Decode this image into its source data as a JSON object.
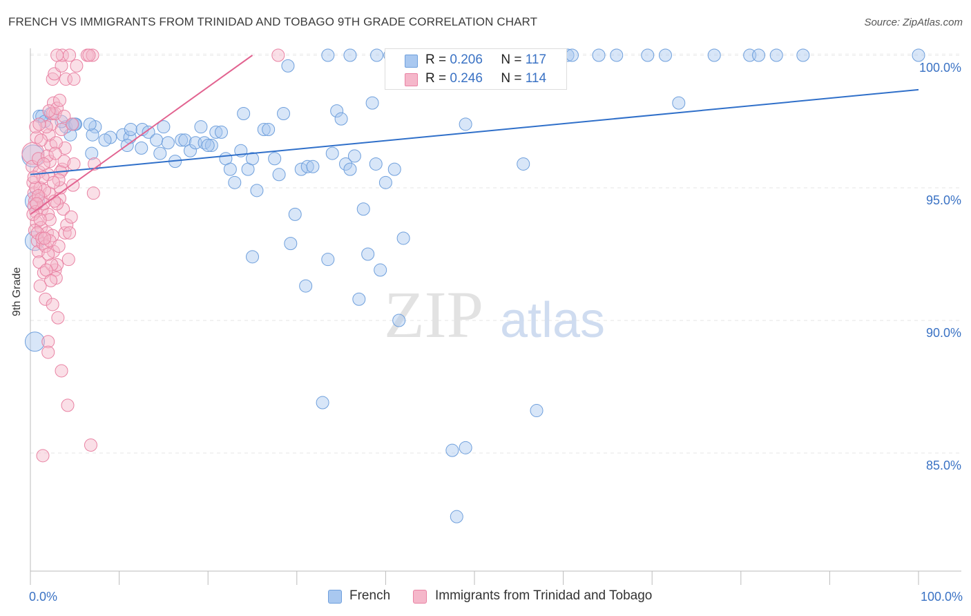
{
  "title": "FRENCH VS IMMIGRANTS FROM TRINIDAD AND TOBAGO 9TH GRADE CORRELATION CHART",
  "source": "Source: ZipAtlas.com",
  "watermark": {
    "zip": "ZIP",
    "atlas": "atlas"
  },
  "legend_stats": {
    "blue": {
      "r_label": "R =",
      "r_value": "0.206",
      "n_label": "N =",
      "n_value": "117"
    },
    "pink": {
      "r_label": "R =",
      "r_value": "0.246",
      "n_label": "N =",
      "n_value": "114"
    }
  },
  "bottom_legend": {
    "blue": "French",
    "pink": "Immigrants from Trinidad and Tobago"
  },
  "colors": {
    "blue_fill": "#a9c8f0",
    "blue_stroke": "#6e9fdc",
    "blue_line": "#2f6fc9",
    "pink_fill": "#f5b7ca",
    "pink_stroke": "#e982a3",
    "pink_line": "#e26390",
    "tick_label": "#3a72c4"
  },
  "chart_data": {
    "type": "scatter",
    "title": "FRENCH VS IMMIGRANTS FROM TRINIDAD AND TOBAGO 9TH GRADE CORRELATION CHART",
    "xlabel": "",
    "ylabel": "9th Grade",
    "xlim": [
      0,
      100
    ],
    "ylim": [
      80.5,
      100.8
    ],
    "x_tick_labels": [
      "0.0%",
      "100.0%"
    ],
    "y_ticks": [
      85,
      90,
      95,
      100
    ],
    "y_tick_labels": [
      "85.0%",
      "90.0%",
      "95.0%",
      "100.0%"
    ],
    "grid": true,
    "legend_position": "bottom",
    "series": [
      {
        "name": "French",
        "trend": {
          "x": [
            0,
            100
          ],
          "y": [
            95.5,
            98.7
          ]
        },
        "points": [
          {
            "x": 0.3,
            "y": 96.2,
            "s": 16
          },
          {
            "x": 0.5,
            "y": 89.2,
            "s": 14
          },
          {
            "x": 0.5,
            "y": 94.5,
            "s": 14
          },
          {
            "x": 0.5,
            "y": 93.0,
            "s": 14
          },
          {
            "x": 1.0,
            "y": 97.7
          },
          {
            "x": 1.3,
            "y": 97.7
          },
          {
            "x": 1.6,
            "y": 97.5
          },
          {
            "x": 2.3,
            "y": 97.8
          },
          {
            "x": 4.8,
            "y": 97.4
          },
          {
            "x": 4.5,
            "y": 97.0
          },
          {
            "x": 4.0,
            "y": 97.3
          },
          {
            "x": 7.3,
            "y": 97.3
          },
          {
            "x": 7.0,
            "y": 97.0
          },
          {
            "x": 5.1,
            "y": 97.4
          },
          {
            "x": 6.7,
            "y": 97.4
          },
          {
            "x": 9.0,
            "y": 96.9
          },
          {
            "x": 8.4,
            "y": 96.8
          },
          {
            "x": 6.9,
            "y": 96.3
          },
          {
            "x": 10.4,
            "y": 97.0
          },
          {
            "x": 11.2,
            "y": 96.9
          },
          {
            "x": 10.9,
            "y": 96.6
          },
          {
            "x": 11.3,
            "y": 97.2
          },
          {
            "x": 12.6,
            "y": 97.2
          },
          {
            "x": 13.3,
            "y": 97.1
          },
          {
            "x": 14.2,
            "y": 96.8
          },
          {
            "x": 12.5,
            "y": 96.5
          },
          {
            "x": 14.6,
            "y": 96.3
          },
          {
            "x": 15.0,
            "y": 97.3
          },
          {
            "x": 15.5,
            "y": 96.7
          },
          {
            "x": 16.3,
            "y": 96.0
          },
          {
            "x": 17.0,
            "y": 96.8
          },
          {
            "x": 17.4,
            "y": 96.8
          },
          {
            "x": 18.0,
            "y": 96.4
          },
          {
            "x": 18.6,
            "y": 96.7
          },
          {
            "x": 19.2,
            "y": 97.3
          },
          {
            "x": 19.6,
            "y": 96.7
          },
          {
            "x": 20.4,
            "y": 96.6
          },
          {
            "x": 20.0,
            "y": 96.6
          },
          {
            "x": 20.9,
            "y": 97.1
          },
          {
            "x": 21.5,
            "y": 97.1
          },
          {
            "x": 22.0,
            "y": 96.1
          },
          {
            "x": 22.5,
            "y": 95.7
          },
          {
            "x": 23.0,
            "y": 95.2
          },
          {
            "x": 23.7,
            "y": 96.4
          },
          {
            "x": 24.0,
            "y": 97.8
          },
          {
            "x": 24.5,
            "y": 95.7
          },
          {
            "x": 25.0,
            "y": 96.1
          },
          {
            "x": 25.5,
            "y": 94.9
          },
          {
            "x": 26.3,
            "y": 97.2
          },
          {
            "x": 26.8,
            "y": 97.2
          },
          {
            "x": 27.5,
            "y": 96.1
          },
          {
            "x": 28.0,
            "y": 95.5
          },
          {
            "x": 28.5,
            "y": 97.8
          },
          {
            "x": 29.3,
            "y": 92.9
          },
          {
            "x": 29.8,
            "y": 94.0
          },
          {
            "x": 30.5,
            "y": 95.7
          },
          {
            "x": 31.0,
            "y": 91.3
          },
          {
            "x": 31.2,
            "y": 95.8
          },
          {
            "x": 31.8,
            "y": 95.8
          },
          {
            "x": 32.9,
            "y": 86.9
          },
          {
            "x": 33.5,
            "y": 92.3
          },
          {
            "x": 34.0,
            "y": 96.3
          },
          {
            "x": 34.5,
            "y": 97.9
          },
          {
            "x": 35.0,
            "y": 97.6
          },
          {
            "x": 35.5,
            "y": 95.9
          },
          {
            "x": 36.0,
            "y": 95.7
          },
          {
            "x": 36.5,
            "y": 96.2
          },
          {
            "x": 37.0,
            "y": 90.8
          },
          {
            "x": 37.5,
            "y": 94.2
          },
          {
            "x": 38.0,
            "y": 92.5
          },
          {
            "x": 38.5,
            "y": 98.2
          },
          {
            "x": 38.9,
            "y": 95.9
          },
          {
            "x": 39.0,
            "y": 100
          },
          {
            "x": 39.4,
            "y": 91.9
          },
          {
            "x": 40.0,
            "y": 95.2
          },
          {
            "x": 41.0,
            "y": 95.7
          },
          {
            "x": 41.5,
            "y": 90.0
          },
          {
            "x": 42.0,
            "y": 93.1
          },
          {
            "x": 44.0,
            "y": 100
          },
          {
            "x": 44.5,
            "y": 100
          },
          {
            "x": 45.0,
            "y": 100
          },
          {
            "x": 46.5,
            "y": 100
          },
          {
            "x": 47.5,
            "y": 85.1
          },
          {
            "x": 48.0,
            "y": 82.6
          },
          {
            "x": 49.0,
            "y": 85.2
          },
          {
            "x": 50.0,
            "y": 100
          },
          {
            "x": 51.0,
            "y": 100
          },
          {
            "x": 55.5,
            "y": 95.9
          },
          {
            "x": 55.0,
            "y": 100
          },
          {
            "x": 57.5,
            "y": 100
          },
          {
            "x": 60.5,
            "y": 100
          },
          {
            "x": 61.0,
            "y": 100
          },
          {
            "x": 55.0,
            "y": 100
          },
          {
            "x": 57.0,
            "y": 86.6
          },
          {
            "x": 49.0,
            "y": 97.4
          },
          {
            "x": 64.0,
            "y": 100
          },
          {
            "x": 66.0,
            "y": 100
          },
          {
            "x": 69.5,
            "y": 100
          },
          {
            "x": 71.5,
            "y": 100
          },
          {
            "x": 73.0,
            "y": 98.2
          },
          {
            "x": 77.0,
            "y": 100
          },
          {
            "x": 81.0,
            "y": 100
          },
          {
            "x": 82.0,
            "y": 100
          },
          {
            "x": 84.0,
            "y": 100
          },
          {
            "x": 87.0,
            "y": 100
          },
          {
            "x": 100.0,
            "y": 100
          },
          {
            "x": 25.0,
            "y": 92.4
          },
          {
            "x": 36.0,
            "y": 100
          },
          {
            "x": 40.5,
            "y": 100
          },
          {
            "x": 42.0,
            "y": 99.6
          },
          {
            "x": 46.0,
            "y": 100
          },
          {
            "x": 29.0,
            "y": 99.6
          },
          {
            "x": 33.5,
            "y": 100
          },
          {
            "x": 5.0,
            "y": 97.4
          },
          {
            "x": 3.5,
            "y": 97.5
          }
        ]
      },
      {
        "name": "Immigrants from Trinidad and Tobago",
        "trend": {
          "x": [
            0,
            25
          ],
          "y": [
            94.0,
            100
          ]
        },
        "points": [
          {
            "x": 0.3,
            "y": 96.3,
            "s": 16
          },
          {
            "x": 0.2,
            "y": 95.8
          },
          {
            "x": 0.3,
            "y": 95.2
          },
          {
            "x": 0.4,
            "y": 94.8
          },
          {
            "x": 0.5,
            "y": 94.5
          },
          {
            "x": 0.4,
            "y": 94.3
          },
          {
            "x": 0.6,
            "y": 94.1
          },
          {
            "x": 0.7,
            "y": 93.7
          },
          {
            "x": 0.5,
            "y": 93.4
          },
          {
            "x": 0.8,
            "y": 93.0
          },
          {
            "x": 0.9,
            "y": 92.6
          },
          {
            "x": 1.0,
            "y": 92.2
          },
          {
            "x": 1.0,
            "y": 95.6
          },
          {
            "x": 1.1,
            "y": 95.0
          },
          {
            "x": 1.2,
            "y": 94.6
          },
          {
            "x": 1.3,
            "y": 94.2
          },
          {
            "x": 1.2,
            "y": 93.5
          },
          {
            "x": 1.4,
            "y": 92.9
          },
          {
            "x": 1.5,
            "y": 91.8
          },
          {
            "x": 1.1,
            "y": 91.3
          },
          {
            "x": 1.7,
            "y": 90.8
          },
          {
            "x": 1.9,
            "y": 93.3
          },
          {
            "x": 2.0,
            "y": 94.0
          },
          {
            "x": 2.1,
            "y": 94.8
          },
          {
            "x": 2.0,
            "y": 95.5
          },
          {
            "x": 2.2,
            "y": 96.0
          },
          {
            "x": 2.3,
            "y": 96.6
          },
          {
            "x": 2.1,
            "y": 97.0
          },
          {
            "x": 2.4,
            "y": 97.4
          },
          {
            "x": 1.8,
            "y": 97.3
          },
          {
            "x": 2.5,
            "y": 97.8
          },
          {
            "x": 2.6,
            "y": 98.2
          },
          {
            "x": 2.8,
            "y": 97.8
          },
          {
            "x": 3.0,
            "y": 98.0
          },
          {
            "x": 2.5,
            "y": 99.1
          },
          {
            "x": 2.7,
            "y": 99.3
          },
          {
            "x": 2.5,
            "y": 93.2
          },
          {
            "x": 2.6,
            "y": 92.6
          },
          {
            "x": 2.8,
            "y": 91.9
          },
          {
            "x": 2.9,
            "y": 91.6
          },
          {
            "x": 3.0,
            "y": 92.1
          },
          {
            "x": 2.5,
            "y": 90.6
          },
          {
            "x": 3.1,
            "y": 90.1
          },
          {
            "x": 2.0,
            "y": 89.2
          },
          {
            "x": 2.0,
            "y": 88.8
          },
          {
            "x": 3.5,
            "y": 88.1
          },
          {
            "x": 4.2,
            "y": 86.8
          },
          {
            "x": 1.4,
            "y": 84.9
          },
          {
            "x": 6.8,
            "y": 85.3
          },
          {
            "x": 3.3,
            "y": 94.6
          },
          {
            "x": 3.4,
            "y": 95.0
          },
          {
            "x": 3.6,
            "y": 95.7
          },
          {
            "x": 3.8,
            "y": 96.0
          },
          {
            "x": 3.9,
            "y": 96.5
          },
          {
            "x": 3.5,
            "y": 97.2
          },
          {
            "x": 3.7,
            "y": 94.2
          },
          {
            "x": 3.9,
            "y": 93.3
          },
          {
            "x": 4.1,
            "y": 93.6
          },
          {
            "x": 4.3,
            "y": 92.3
          },
          {
            "x": 4.6,
            "y": 93.9
          },
          {
            "x": 4.8,
            "y": 95.1
          },
          {
            "x": 4.9,
            "y": 95.9
          },
          {
            "x": 3.5,
            "y": 99.6
          },
          {
            "x": 3.6,
            "y": 100
          },
          {
            "x": 4.4,
            "y": 100
          },
          {
            "x": 4.0,
            "y": 99.1
          },
          {
            "x": 4.9,
            "y": 99.1
          },
          {
            "x": 5.2,
            "y": 99.6
          },
          {
            "x": 6.4,
            "y": 100
          },
          {
            "x": 7.0,
            "y": 100
          },
          {
            "x": 7.1,
            "y": 94.8
          },
          {
            "x": 7.2,
            "y": 95.9
          },
          {
            "x": 27.9,
            "y": 100
          },
          {
            "x": 3.4,
            "y": 95.6
          },
          {
            "x": 3.0,
            "y": 94.4
          },
          {
            "x": 2.2,
            "y": 93.8
          },
          {
            "x": 1.6,
            "y": 94.9
          },
          {
            "x": 1.4,
            "y": 95.4
          },
          {
            "x": 0.9,
            "y": 96.1
          },
          {
            "x": 0.7,
            "y": 96.9
          },
          {
            "x": 0.6,
            "y": 97.3
          },
          {
            "x": 0.3,
            "y": 94.0
          },
          {
            "x": 0.8,
            "y": 93.3
          },
          {
            "x": 1.3,
            "y": 93.1
          },
          {
            "x": 1.7,
            "y": 92.8
          },
          {
            "x": 2.2,
            "y": 93.0
          },
          {
            "x": 1.5,
            "y": 94.4
          },
          {
            "x": 2.7,
            "y": 94.5
          },
          {
            "x": 3.2,
            "y": 95.3
          },
          {
            "x": 0.6,
            "y": 95.0
          },
          {
            "x": 0.9,
            "y": 94.7
          },
          {
            "x": 2.9,
            "y": 96.7
          },
          {
            "x": 1.9,
            "y": 96.2
          },
          {
            "x": 2.4,
            "y": 92.1
          },
          {
            "x": 1.0,
            "y": 97.4
          },
          {
            "x": 3.0,
            "y": 100
          },
          {
            "x": 6.6,
            "y": 100
          },
          {
            "x": 3.8,
            "y": 97.7
          },
          {
            "x": 2.1,
            "y": 97.9
          },
          {
            "x": 1.2,
            "y": 96.8
          },
          {
            "x": 0.4,
            "y": 95.4
          },
          {
            "x": 0.7,
            "y": 94.4
          },
          {
            "x": 1.1,
            "y": 93.8
          },
          {
            "x": 1.6,
            "y": 93.1
          },
          {
            "x": 2.0,
            "y": 92.5
          },
          {
            "x": 1.8,
            "y": 91.9
          },
          {
            "x": 2.6,
            "y": 95.2
          },
          {
            "x": 1.5,
            "y": 95.9
          },
          {
            "x": 4.4,
            "y": 93.3
          },
          {
            "x": 3.2,
            "y": 92.8
          },
          {
            "x": 2.3,
            "y": 91.5
          },
          {
            "x": 4.7,
            "y": 97.4
          },
          {
            "x": 3.3,
            "y": 98.3
          },
          {
            "x": 2.8,
            "y": 96.3
          }
        ]
      }
    ]
  }
}
